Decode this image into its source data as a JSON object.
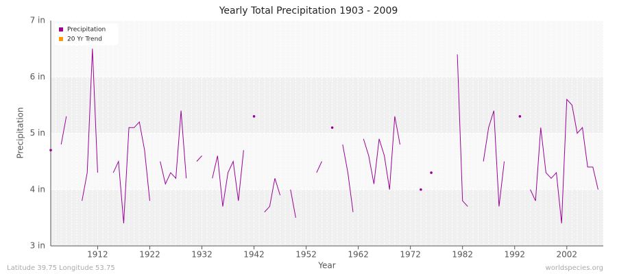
{
  "chart_data": {
    "type": "line",
    "title": "Yearly Total Precipitation 1903 - 2009",
    "x_label": "Year",
    "y_label": "Precipitation",
    "footer_left": "Latitude 39.75 Longitude 53.75",
    "footer_right": "worldspecies.org",
    "x": [
      1903,
      1904,
      1905,
      1906,
      1907,
      1908,
      1909,
      1910,
      1911,
      1912,
      1913,
      1914,
      1915,
      1916,
      1917,
      1918,
      1919,
      1920,
      1921,
      1922,
      1923,
      1924,
      1925,
      1926,
      1927,
      1928,
      1929,
      1930,
      1931,
      1932,
      1933,
      1934,
      1935,
      1936,
      1937,
      1938,
      1939,
      1940,
      1941,
      1942,
      1943,
      1944,
      1945,
      1946,
      1947,
      1948,
      1949,
      1950,
      1951,
      1952,
      1953,
      1954,
      1955,
      1956,
      1957,
      1958,
      1959,
      1960,
      1961,
      1962,
      1963,
      1964,
      1965,
      1966,
      1967,
      1968,
      1969,
      1970,
      1971,
      1972,
      1973,
      1974,
      1975,
      1976,
      1977,
      1978,
      1979,
      1980,
      1981,
      1982,
      1983,
      1984,
      1985,
      1986,
      1987,
      1988,
      1989,
      1990,
      1991,
      1992,
      1993,
      1994,
      1995,
      1996,
      1997,
      1998,
      1999,
      2000,
      2001,
      2002,
      2003,
      2004,
      2005,
      2006,
      2007,
      2008,
      2009
    ],
    "series": [
      {
        "name": "Precipitation",
        "color": "#990099",
        "values": [
          4.7,
          null,
          4.8,
          5.3,
          null,
          null,
          3.8,
          4.3,
          6.5,
          4.3,
          null,
          null,
          4.3,
          4.5,
          3.4,
          5.1,
          5.1,
          5.2,
          4.7,
          3.8,
          null,
          4.5,
          4.1,
          4.3,
          4.2,
          5.4,
          4.2,
          null,
          4.5,
          4.6,
          null,
          4.2,
          4.6,
          3.7,
          4.3,
          4.5,
          3.8,
          4.7,
          null,
          5.3,
          null,
          3.6,
          3.7,
          4.2,
          3.9,
          null,
          4.0,
          3.5,
          null,
          null,
          null,
          4.3,
          4.5,
          null,
          5.1,
          null,
          4.8,
          4.3,
          3.6,
          null,
          4.9,
          4.6,
          4.1,
          4.9,
          4.6,
          4.0,
          5.3,
          4.8,
          null,
          null,
          null,
          4.0,
          null,
          4.3,
          null,
          null,
          null,
          null,
          6.4,
          3.8,
          3.7,
          null,
          null,
          4.5,
          5.1,
          5.4,
          3.7,
          4.5,
          null,
          null,
          5.3,
          null,
          4.0,
          3.8,
          5.1,
          4.3,
          4.2,
          4.3,
          3.4,
          5.6,
          5.5,
          5.0,
          5.1,
          4.4,
          4.4,
          4.0,
          null
        ]
      },
      {
        "name": "20 Yr Trend",
        "color": "#ff9900",
        "values": [
          null,
          null,
          null,
          null,
          null,
          null,
          null,
          null,
          null,
          null,
          null,
          null,
          null,
          null,
          null,
          null,
          null,
          null,
          null,
          null,
          null,
          null,
          null,
          null,
          null,
          null,
          null,
          null,
          null,
          null,
          null,
          null,
          null,
          null,
          null,
          null,
          null,
          null,
          null,
          null,
          null,
          null,
          null,
          null,
          null,
          null,
          null,
          null,
          null,
          null,
          null,
          null,
          null,
          null,
          null,
          null,
          null,
          null,
          null,
          null,
          null,
          null,
          null,
          null,
          null,
          null,
          null,
          null,
          null,
          null,
          null,
          null,
          null,
          null,
          null,
          null,
          null,
          null,
          null,
          null,
          null,
          null,
          null,
          null,
          null,
          null,
          null,
          null,
          null,
          null,
          null,
          null,
          null,
          null,
          null,
          null,
          null,
          null,
          null,
          null,
          null,
          null,
          null,
          null,
          null,
          null,
          null
        ]
      }
    ],
    "xlim": [
      1903,
      2009
    ],
    "xticks": [
      1912,
      1922,
      1932,
      1942,
      1952,
      1962,
      1972,
      1982,
      1992,
      2002
    ],
    "ylim": [
      3,
      7
    ],
    "yticks": [
      {
        "value": 3,
        "label": "3 in"
      },
      {
        "value": 4,
        "label": "4 in"
      },
      {
        "value": 5,
        "label": "5 in"
      },
      {
        "value": 6,
        "label": "6 in"
      },
      {
        "value": 7,
        "label": "7 in"
      }
    ],
    "grid": true,
    "legend": "upper left"
  }
}
